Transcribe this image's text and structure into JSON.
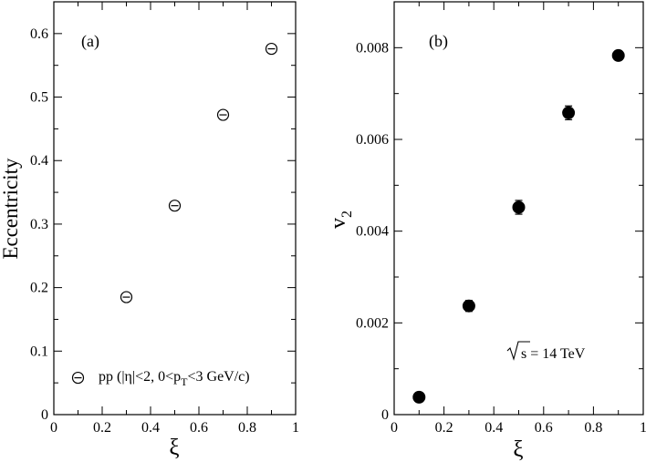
{
  "chart_data": [
    {
      "type": "scatter",
      "panel_label": "(a)",
      "xlabel": "ξ",
      "ylabel": "Eccentricity",
      "xlim": [
        0,
        1
      ],
      "ylim": [
        0,
        0.65
      ],
      "xticks": [
        "0",
        "0.2",
        "0.4",
        "0.6",
        "0.8",
        "1"
      ],
      "yticks": [
        "0",
        "0.1",
        "0.2",
        "0.3",
        "0.4",
        "0.5",
        "0.6"
      ],
      "marker": "open-circle",
      "annotation": "pp (|η|<2, 0<pT<3 GeV/c)",
      "x": [
        0.1,
        0.3,
        0.5,
        0.7,
        0.9
      ],
      "y": [
        0.058,
        0.185,
        0.329,
        0.472,
        0.576
      ]
    },
    {
      "type": "scatter",
      "panel_label": "(b)",
      "xlabel": "ξ",
      "ylabel": "v2",
      "xlim": [
        0,
        1
      ],
      "ylim": [
        0,
        0.009
      ],
      "xticks": [
        "0",
        "0.2",
        "0.4",
        "0.6",
        "0.8",
        "1"
      ],
      "yticks": [
        "0",
        "0.002",
        "0.004",
        "0.006",
        "0.008"
      ],
      "marker": "filled-circle",
      "annotation": "√s = 14 TeV",
      "x": [
        0.1,
        0.3,
        0.5,
        0.7,
        0.9
      ],
      "y": [
        0.00038,
        0.00237,
        0.00452,
        0.00658,
        0.00783
      ],
      "yerr": [
        0.0001,
        0.00012,
        0.00015,
        0.00015,
        0.0001
      ]
    }
  ]
}
